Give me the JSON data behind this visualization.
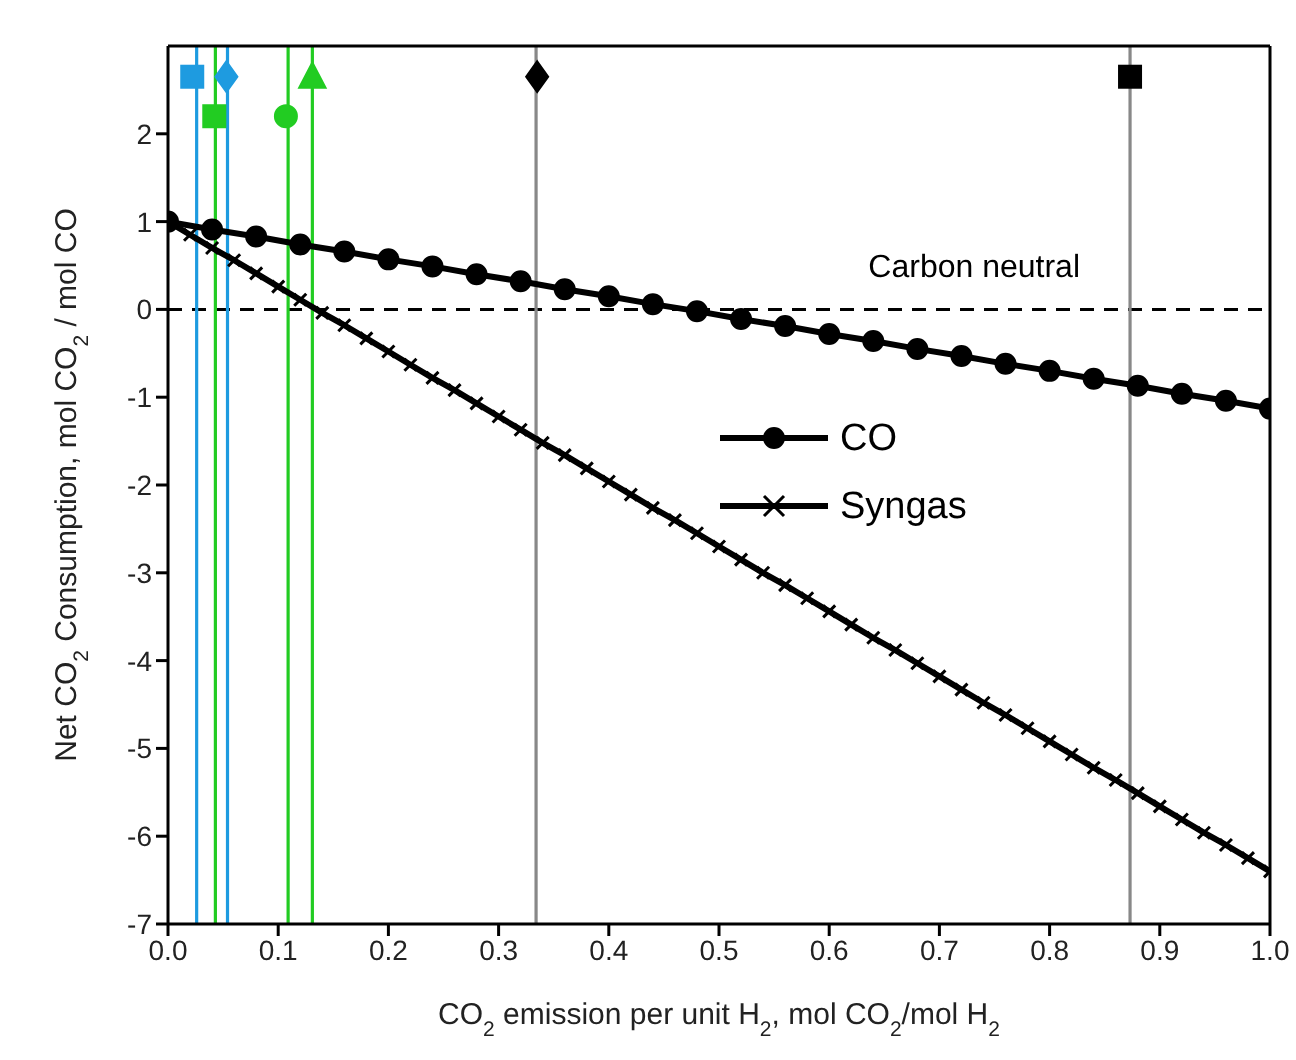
{
  "chart_data": {
    "type": "line",
    "xlabel": "CO$_{2}$ emission per unit H$_{2}$,  mol CO$_{2}$/mol H$_{2}$",
    "ylabel": "Net CO$_{2}$ Consumption, mol CO$_{2}$ / mol CO",
    "xlim": [
      0,
      1
    ],
    "xticks": [
      {
        "value": 0,
        "label": "0.0"
      },
      0.1,
      0.2,
      0.3,
      0.4,
      0.5,
      0.6,
      0.7,
      0.8,
      0.9,
      {
        "value": 1,
        "label": "1.0"
      }
    ],
    "ylim": [
      -7,
      3
    ],
    "yticks": [
      -7,
      -6,
      -5,
      -4,
      -3,
      -2,
      -1,
      0,
      1,
      2
    ],
    "legend": "center",
    "line_style": "solid",
    "series": [
      {
        "name": "CO",
        "color": "#000000",
        "marker": "circle",
        "x": [
          0,
          0.04,
          0.08,
          0.12,
          0.16,
          0.2,
          0.24,
          0.28,
          0.32,
          0.36,
          0.4,
          0.44,
          0.48,
          0.52,
          0.56,
          0.6,
          0.64,
          0.68,
          0.72,
          0.76,
          0.8,
          0.84,
          0.88,
          0.92,
          0.96,
          1
        ],
        "values": [
          1,
          0.91,
          0.83,
          0.74,
          0.66,
          0.57,
          0.49,
          0.4,
          0.32,
          0.23,
          0.15,
          0.06,
          -0.02,
          -0.11,
          -0.19,
          -0.28,
          -0.36,
          -0.45,
          -0.53,
          -0.62,
          -0.7,
          -0.79,
          -0.87,
          -0.96,
          -1.04,
          -1.13
        ]
      },
      {
        "name": "Syngas",
        "color": "#000000",
        "marker": "cross",
        "x": [
          0,
          0.02,
          0.04,
          0.06,
          0.08,
          0.1,
          0.12,
          0.14,
          0.16,
          0.18,
          0.2,
          0.22,
          0.24,
          0.26,
          0.28,
          0.3,
          0.32,
          0.34,
          0.36,
          0.38,
          0.4,
          0.42,
          0.44,
          0.46,
          0.48,
          0.5,
          0.52,
          0.54,
          0.56,
          0.58,
          0.6,
          0.62,
          0.64,
          0.66,
          0.68,
          0.7,
          0.72,
          0.74,
          0.76,
          0.78,
          0.8,
          0.82,
          0.84,
          0.86,
          0.88,
          0.9,
          0.92,
          0.94,
          0.96,
          0.98,
          1
        ],
        "values": [
          1,
          0.85,
          0.7,
          0.56,
          0.41,
          0.26,
          0.11,
          -0.04,
          -0.18,
          -0.33,
          -0.48,
          -0.63,
          -0.78,
          -0.92,
          -1.07,
          -1.22,
          -1.37,
          -1.52,
          -1.66,
          -1.81,
          -1.96,
          -2.11,
          -2.26,
          -2.4,
          -2.55,
          -2.7,
          -2.85,
          -3,
          -3.14,
          -3.29,
          -3.44,
          -3.59,
          -3.74,
          -3.88,
          -4.03,
          -4.18,
          -4.33,
          -4.48,
          -4.62,
          -4.77,
          -4.92,
          -5.07,
          -5.22,
          -5.36,
          -5.51,
          -5.66,
          -5.81,
          -5.96,
          -6.1,
          -6.25,
          -6.4
        ]
      },
      {
        "type": "scatter",
        "color": "#1e9be0",
        "marker": "square",
        "x": [
          0.022
        ],
        "values": [
          2.65
        ]
      },
      {
        "type": "scatter",
        "color": "#1e9be0",
        "marker": "diamond",
        "x": [
          0.053
        ],
        "values": [
          2.65
        ]
      },
      {
        "type": "scatter",
        "color": "#22cc22",
        "marker": "square",
        "x": [
          0.042
        ],
        "values": [
          2.2
        ]
      },
      {
        "type": "scatter",
        "color": "#22cc22",
        "marker": "circle",
        "x": [
          0.107
        ],
        "values": [
          2.2
        ]
      },
      {
        "type": "scatter",
        "color": "#22cc22",
        "marker": "triangle",
        "x": [
          0.131
        ],
        "values": [
          2.65
        ]
      },
      {
        "type": "scatter",
        "color": "#000000",
        "marker": "diamond",
        "x": [
          0.335
        ],
        "values": [
          2.65
        ]
      },
      {
        "type": "scatter",
        "color": "#000000",
        "marker": "square",
        "x": [
          0.873
        ],
        "values": [
          2.65
        ]
      }
    ],
    "ref_lines": [
      {
        "axis": "y",
        "value": 0,
        "label": "Carbon neutral",
        "color": "#000000",
        "line_style": "dashed"
      },
      {
        "axis": "x",
        "value": 0.026,
        "color": "#1e9be0"
      },
      {
        "axis": "x",
        "value": 0.054,
        "color": "#1e9be0"
      },
      {
        "axis": "x",
        "value": 0.043,
        "color": "#22cc22"
      },
      {
        "axis": "x",
        "value": 0.109,
        "color": "#22cc22"
      },
      {
        "axis": "x",
        "value": 0.131,
        "color": "#22cc22"
      },
      {
        "axis": "x",
        "value": 0.334,
        "color": "#888888"
      },
      {
        "axis": "x",
        "value": 0.873,
        "color": "#888888"
      }
    ]
  }
}
